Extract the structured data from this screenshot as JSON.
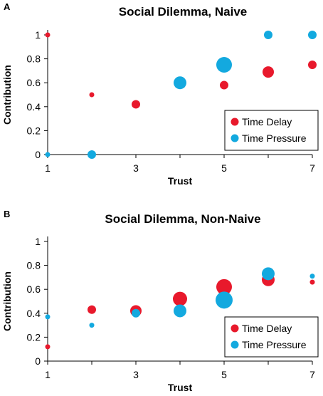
{
  "chart_data": [
    {
      "panel": "A",
      "type": "scatter",
      "title": "Social Dilemma, Naive",
      "xlabel": "Trust",
      "ylabel": "Contribution",
      "xlim": [
        1,
        7
      ],
      "ylim": [
        0,
        1
      ],
      "xticks": [
        "1",
        "3",
        "5",
        "7"
      ],
      "yticks": [
        "0",
        "0.2",
        "0.4",
        "0.6",
        "0.8",
        "1"
      ],
      "legend_position": "bottom-right",
      "series": [
        {
          "name": "Time Delay",
          "color": "#e8192c",
          "points": [
            {
              "x": 1,
              "y": 1.0,
              "size": 1
            },
            {
              "x": 2,
              "y": 0.5,
              "size": 1
            },
            {
              "x": 3,
              "y": 0.42,
              "size": 2
            },
            {
              "x": 5,
              "y": 0.58,
              "size": 2
            },
            {
              "x": 6,
              "y": 0.69,
              "size": 3
            },
            {
              "x": 7,
              "y": 0.75,
              "size": 2
            }
          ]
        },
        {
          "name": "Time Pressure",
          "color": "#13a9df",
          "points": [
            {
              "x": 1,
              "y": 0.0,
              "size": 1
            },
            {
              "x": 2,
              "y": 0.0,
              "size": 2
            },
            {
              "x": 4,
              "y": 0.6,
              "size": 4
            },
            {
              "x": 5,
              "y": 0.75,
              "size": 6
            },
            {
              "x": 6,
              "y": 1.0,
              "size": 2
            },
            {
              "x": 7,
              "y": 1.0,
              "size": 2
            }
          ]
        }
      ]
    },
    {
      "panel": "B",
      "type": "scatter",
      "title": "Social Dilemma, Non-Naive",
      "xlabel": "Trust",
      "ylabel": "Contribution",
      "xlim": [
        1,
        7
      ],
      "ylim": [
        0,
        1
      ],
      "xticks": [
        "1",
        "3",
        "5",
        "7"
      ],
      "yticks": [
        "0",
        "0.2",
        "0.4",
        "0.6",
        "0.8",
        "1"
      ],
      "legend_position": "bottom-right",
      "series": [
        {
          "name": "Time Delay",
          "color": "#e8192c",
          "points": [
            {
              "x": 1,
              "y": 0.12,
              "size": 1
            },
            {
              "x": 2,
              "y": 0.43,
              "size": 2
            },
            {
              "x": 3,
              "y": 0.42,
              "size": 3
            },
            {
              "x": 4,
              "y": 0.52,
              "size": 5
            },
            {
              "x": 5,
              "y": 0.62,
              "size": 6
            },
            {
              "x": 6,
              "y": 0.68,
              "size": 4
            },
            {
              "x": 7,
              "y": 0.66,
              "size": 1
            }
          ]
        },
        {
          "name": "Time Pressure",
          "color": "#13a9df",
          "points": [
            {
              "x": 1,
              "y": 0.37,
              "size": 1
            },
            {
              "x": 2,
              "y": 0.3,
              "size": 1
            },
            {
              "x": 3,
              "y": 0.4,
              "size": 2
            },
            {
              "x": 4,
              "y": 0.42,
              "size": 4
            },
            {
              "x": 5,
              "y": 0.51,
              "size": 7
            },
            {
              "x": 6,
              "y": 0.73,
              "size": 4
            },
            {
              "x": 7,
              "y": 0.71,
              "size": 1
            }
          ]
        }
      ]
    }
  ]
}
